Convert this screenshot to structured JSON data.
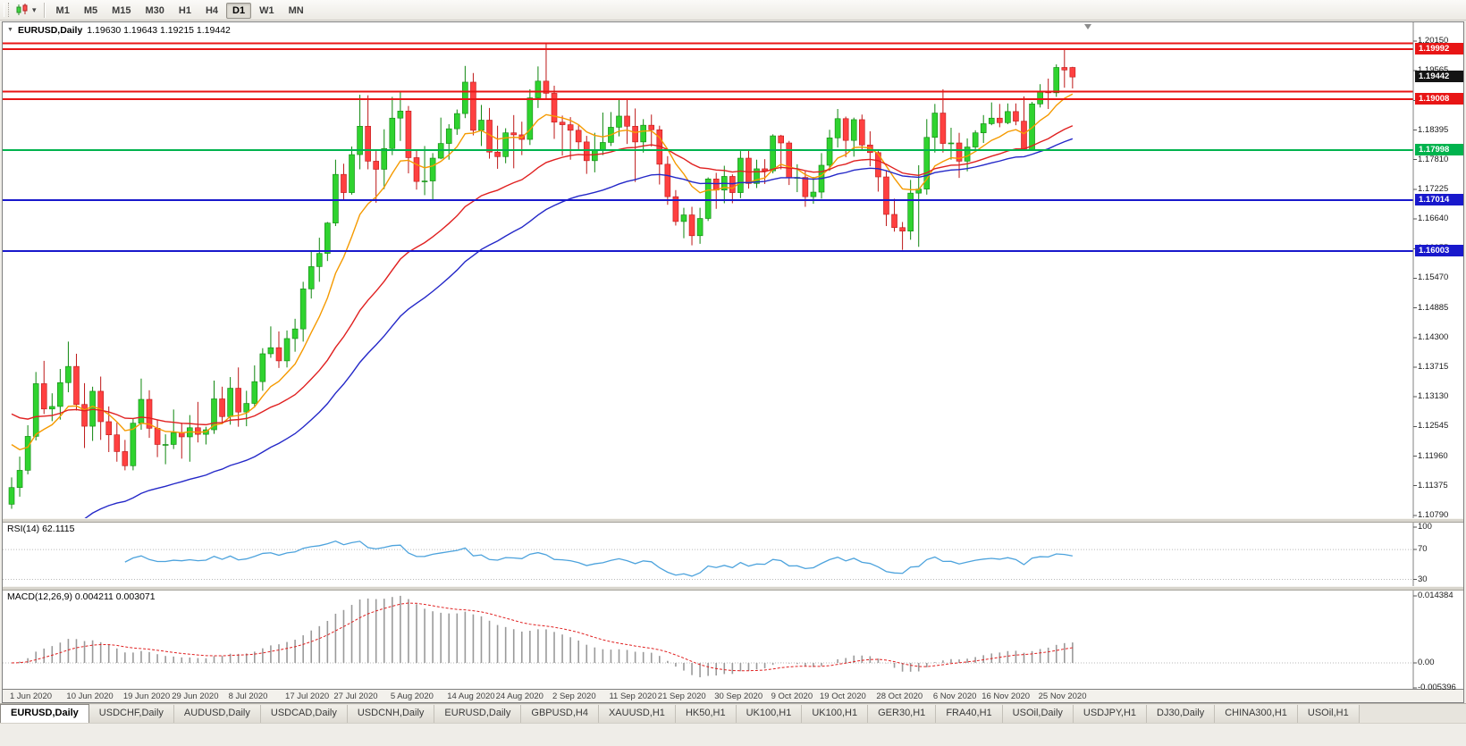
{
  "toolbar": {
    "caret": "▾",
    "timeframes": [
      {
        "label": "M1",
        "active": false
      },
      {
        "label": "M5",
        "active": false
      },
      {
        "label": "M15",
        "active": false
      },
      {
        "label": "M30",
        "active": false
      },
      {
        "label": "H1",
        "active": false
      },
      {
        "label": "H4",
        "active": false
      },
      {
        "label": "D1",
        "active": true
      },
      {
        "label": "W1",
        "active": false
      },
      {
        "label": "MN",
        "active": false
      }
    ]
  },
  "chart": {
    "header": {
      "caret": "▼",
      "title": "EURUSD,Daily",
      "ohlc": "1.19630 1.19643 1.19215 1.19442"
    }
  },
  "chart_data": {
    "type": "candlestick",
    "symbol": "EURUSD",
    "timeframe": "Daily",
    "ohlc_display": {
      "open": "1.19630",
      "high": "1.19643",
      "low": "1.19215",
      "close": "1.19442"
    },
    "colors": {
      "bull": "#2fd32f",
      "bull_edge": "#0e860e",
      "bear": "#ff4040",
      "bear_edge": "#bd1717",
      "background": "#ffffff",
      "axis_line": "#808080"
    },
    "price_axis": {
      "min": 1.1079,
      "max": 1.2015,
      "step": 0.00585,
      "labels": [
        "1.20150",
        "1.19565",
        "1.18980",
        "1.18395",
        "1.17810",
        "1.17225",
        "1.16640",
        "1.16055",
        "1.15470",
        "1.14885",
        "1.14300",
        "1.13715",
        "1.13130",
        "1.12545",
        "1.11960",
        "1.11375",
        "1.10790"
      ]
    },
    "hlines": [
      {
        "price": 1.2011,
        "color": "#e81515"
      },
      {
        "price": 1.19992,
        "color": "#e81515"
      },
      {
        "price": 1.1915,
        "color": "#e81515"
      },
      {
        "price": 1.19008,
        "color": "#e81515"
      },
      {
        "price": 1.17998,
        "color": "#00b34d"
      },
      {
        "price": 1.17014,
        "color": "#1818cc"
      },
      {
        "price": 1.16003,
        "color": "#1818cc"
      }
    ],
    "badges": [
      {
        "text": "1.19992",
        "price": 1.19992,
        "color": "#e81515",
        "current": false
      },
      {
        "text": "1.19442",
        "price": 1.19442,
        "color": "#141414",
        "current": true
      },
      {
        "text": "1.19008",
        "price": 1.19008,
        "color": "#e81515",
        "current": false
      },
      {
        "text": "1.17998",
        "price": 1.17998,
        "color": "#00b34d",
        "current": false
      },
      {
        "text": "1.17014",
        "price": 1.17014,
        "color": "#1818cc",
        "current": false
      },
      {
        "text": "1.16003",
        "price": 1.16003,
        "color": "#1818cc",
        "current": false
      }
    ],
    "moving_averages": [
      {
        "name": "fast-ma",
        "period": 9,
        "seed": 1.124,
        "color": "#f59a00"
      },
      {
        "name": "medium-ma",
        "period": 28,
        "seed": 1.129,
        "color": "#e02020"
      },
      {
        "name": "slow-ma",
        "period": 43,
        "seed": 1.095,
        "color": "#2428c8"
      }
    ],
    "rsi": {
      "label": "RSI(14) 62.1115",
      "period": 14,
      "value": "62.1115",
      "levels": [
        100,
        70,
        30
      ],
      "line_color": "#4da3dd"
    },
    "macd": {
      "label": "MACD(12,26,9) 0.004211 0.003071",
      "fast": 12,
      "slow": 26,
      "signal": 9,
      "values": [
        "0.004211",
        "0.003071"
      ],
      "axis": [
        "0.014384",
        "0.00",
        "-0.005396"
      ],
      "hist_color": "#9a9a9a",
      "signal_color": "#e02020"
    },
    "date_labels": [
      {
        "index": 0,
        "label": "1 Jun 2020"
      },
      {
        "index": 7,
        "label": "10 Jun 2020"
      },
      {
        "index": 14,
        "label": "19 Jun 2020"
      },
      {
        "index": 20,
        "label": "29 Jun 2020"
      },
      {
        "index": 27,
        "label": "8 Jul 2020"
      },
      {
        "index": 34,
        "label": "17 Jul 2020"
      },
      {
        "index": 40,
        "label": "27 Jul 2020"
      },
      {
        "index": 47,
        "label": "5 Aug 2020"
      },
      {
        "index": 54,
        "label": "14 Aug 2020"
      },
      {
        "index": 60,
        "label": "24 Aug 2020"
      },
      {
        "index": 67,
        "label": "2 Sep 2020"
      },
      {
        "index": 74,
        "label": "11 Sep 2020"
      },
      {
        "index": 80,
        "label": "21 Sep 2020"
      },
      {
        "index": 87,
        "label": "30 Sep 2020"
      },
      {
        "index": 94,
        "label": "9 Oct 2020"
      },
      {
        "index": 100,
        "label": "19 Oct 2020"
      },
      {
        "index": 107,
        "label": "28 Oct 2020"
      },
      {
        "index": 114,
        "label": "6 Nov 2020"
      },
      {
        "index": 120,
        "label": "16 Nov 2020"
      },
      {
        "index": 127,
        "label": "25 Nov 2020"
      }
    ],
    "candles": [
      [
        1.1101,
        1.1154,
        1.1092,
        1.1134
      ],
      [
        1.1134,
        1.1195,
        1.1116,
        1.1168
      ],
      [
        1.1168,
        1.1257,
        1.116,
        1.1235
      ],
      [
        1.1235,
        1.1362,
        1.1227,
        1.1339
      ],
      [
        1.1339,
        1.1384,
        1.1279,
        1.1289
      ],
      [
        1.1289,
        1.132,
        1.1265,
        1.1294
      ],
      [
        1.1294,
        1.1368,
        1.1268,
        1.1341
      ],
      [
        1.1341,
        1.1422,
        1.1322,
        1.1373
      ],
      [
        1.1373,
        1.1398,
        1.1286,
        1.1298
      ],
      [
        1.1298,
        1.134,
        1.1212,
        1.1255
      ],
      [
        1.1255,
        1.1333,
        1.1226,
        1.1324
      ],
      [
        1.1324,
        1.1353,
        1.1228,
        1.1264
      ],
      [
        1.1264,
        1.1294,
        1.1204,
        1.1238
      ],
      [
        1.1238,
        1.1262,
        1.1185,
        1.1205
      ],
      [
        1.1205,
        1.1228,
        1.1168,
        1.1177
      ],
      [
        1.1177,
        1.1271,
        1.1168,
        1.1261
      ],
      [
        1.1261,
        1.1349,
        1.1248,
        1.1308
      ],
      [
        1.1308,
        1.1326,
        1.1232,
        1.1251
      ],
      [
        1.1251,
        1.1268,
        1.1194,
        1.1219
      ],
      [
        1.1219,
        1.1239,
        1.118,
        1.1219
      ],
      [
        1.1219,
        1.1288,
        1.121,
        1.1242
      ],
      [
        1.1242,
        1.1262,
        1.1191,
        1.1234
      ],
      [
        1.1234,
        1.1277,
        1.1185,
        1.1252
      ],
      [
        1.1252,
        1.1303,
        1.1223,
        1.1239
      ],
      [
        1.1239,
        1.1254,
        1.1219,
        1.1248
      ],
      [
        1.1248,
        1.1345,
        1.124,
        1.1309
      ],
      [
        1.1309,
        1.1333,
        1.1259,
        1.1274
      ],
      [
        1.1274,
        1.1352,
        1.1258,
        1.133
      ],
      [
        1.133,
        1.1371,
        1.1254,
        1.1283
      ],
      [
        1.1283,
        1.1325,
        1.1255,
        1.13
      ],
      [
        1.13,
        1.1375,
        1.1292,
        1.1343
      ],
      [
        1.1343,
        1.1409,
        1.1325,
        1.1398
      ],
      [
        1.1398,
        1.1452,
        1.139,
        1.141
      ],
      [
        1.141,
        1.1442,
        1.137,
        1.1384
      ],
      [
        1.1384,
        1.1444,
        1.1371,
        1.1428
      ],
      [
        1.1428,
        1.1467,
        1.1402,
        1.1447
      ],
      [
        1.1447,
        1.154,
        1.1422,
        1.1526
      ],
      [
        1.1526,
        1.1601,
        1.1507,
        1.157
      ],
      [
        1.157,
        1.1627,
        1.154,
        1.1596
      ],
      [
        1.1596,
        1.1658,
        1.1581,
        1.1656
      ],
      [
        1.1656,
        1.1781,
        1.165,
        1.1752
      ],
      [
        1.1752,
        1.1773,
        1.17,
        1.1716
      ],
      [
        1.1716,
        1.1807,
        1.1712,
        1.1791
      ],
      [
        1.1791,
        1.1909,
        1.1762,
        1.1847
      ],
      [
        1.1847,
        1.1908,
        1.1762,
        1.1778
      ],
      [
        1.1778,
        1.1798,
        1.1696,
        1.1762
      ],
      [
        1.1762,
        1.1841,
        1.1723,
        1.1803
      ],
      [
        1.1803,
        1.1905,
        1.179,
        1.1863
      ],
      [
        1.1863,
        1.1916,
        1.1818,
        1.1877
      ],
      [
        1.1877,
        1.1887,
        1.1754,
        1.1785
      ],
      [
        1.1785,
        1.18,
        1.1722,
        1.1738
      ],
      [
        1.1738,
        1.1808,
        1.1711,
        1.1739
      ],
      [
        1.1739,
        1.1794,
        1.1701,
        1.1784
      ],
      [
        1.1784,
        1.1864,
        1.1782,
        1.1813
      ],
      [
        1.1813,
        1.1851,
        1.1781,
        1.1842
      ],
      [
        1.1842,
        1.188,
        1.183,
        1.1872
      ],
      [
        1.1872,
        1.1966,
        1.1863,
        1.1934
      ],
      [
        1.1934,
        1.1952,
        1.1829,
        1.1839
      ],
      [
        1.1839,
        1.1889,
        1.1808,
        1.1859
      ],
      [
        1.1859,
        1.1883,
        1.1783,
        1.1796
      ],
      [
        1.1796,
        1.1848,
        1.1763,
        1.1787
      ],
      [
        1.1787,
        1.1843,
        1.1774,
        1.1834
      ],
      [
        1.1834,
        1.1869,
        1.1764,
        1.183
      ],
      [
        1.183,
        1.1856,
        1.179,
        1.1821
      ],
      [
        1.1821,
        1.192,
        1.181,
        1.1903
      ],
      [
        1.1903,
        1.1965,
        1.1883,
        1.1936
      ],
      [
        1.1936,
        1.2011,
        1.1902,
        1.1912
      ],
      [
        1.1912,
        1.1927,
        1.1822,
        1.1855
      ],
      [
        1.1855,
        1.1868,
        1.1789,
        1.185
      ],
      [
        1.185,
        1.1865,
        1.1781,
        1.1839
      ],
      [
        1.1839,
        1.1849,
        1.1799,
        1.1816
      ],
      [
        1.1816,
        1.1828,
        1.1753,
        1.1779
      ],
      [
        1.1779,
        1.1834,
        1.1756,
        1.1801
      ],
      [
        1.1801,
        1.1874,
        1.179,
        1.1815
      ],
      [
        1.1815,
        1.1875,
        1.1808,
        1.1845
      ],
      [
        1.1845,
        1.1901,
        1.1827,
        1.1867
      ],
      [
        1.1867,
        1.1899,
        1.1812,
        1.1847
      ],
      [
        1.1847,
        1.1882,
        1.1737,
        1.1816
      ],
      [
        1.1816,
        1.1861,
        1.1795,
        1.1849
      ],
      [
        1.1849,
        1.187,
        1.1807,
        1.184
      ],
      [
        1.184,
        1.1848,
        1.1732,
        1.1772
      ],
      [
        1.1772,
        1.1788,
        1.1692,
        1.1708
      ],
      [
        1.1708,
        1.1721,
        1.1651,
        1.1659
      ],
      [
        1.1659,
        1.1686,
        1.1626,
        1.1672
      ],
      [
        1.1672,
        1.1688,
        1.1612,
        1.1631
      ],
      [
        1.1631,
        1.1686,
        1.1615,
        1.1665
      ],
      [
        1.1665,
        1.1746,
        1.166,
        1.1743
      ],
      [
        1.1743,
        1.1755,
        1.1684,
        1.1721
      ],
      [
        1.1721,
        1.1769,
        1.1695,
        1.1748
      ],
      [
        1.1748,
        1.1752,
        1.1695,
        1.1716
      ],
      [
        1.1716,
        1.1798,
        1.1705,
        1.1784
      ],
      [
        1.1784,
        1.1799,
        1.1724,
        1.1734
      ],
      [
        1.1734,
        1.1781,
        1.1725,
        1.1763
      ],
      [
        1.1763,
        1.1782,
        1.1733,
        1.1759
      ],
      [
        1.1759,
        1.1831,
        1.1754,
        1.1828
      ],
      [
        1.1828,
        1.183,
        1.1762,
        1.1814
      ],
      [
        1.1814,
        1.1818,
        1.1731,
        1.1745
      ],
      [
        1.1745,
        1.1772,
        1.1717,
        1.1746
      ],
      [
        1.1746,
        1.1758,
        1.1688,
        1.1708
      ],
      [
        1.1708,
        1.1747,
        1.1694,
        1.1717
      ],
      [
        1.1717,
        1.1794,
        1.1704,
        1.177
      ],
      [
        1.177,
        1.184,
        1.1759,
        1.1824
      ],
      [
        1.1824,
        1.1881,
        1.1805,
        1.1862
      ],
      [
        1.1862,
        1.1866,
        1.1786,
        1.1819
      ],
      [
        1.1819,
        1.1864,
        1.1787,
        1.186
      ],
      [
        1.186,
        1.187,
        1.18,
        1.181
      ],
      [
        1.181,
        1.1837,
        1.1768,
        1.1795
      ],
      [
        1.1795,
        1.18,
        1.1718,
        1.1747
      ],
      [
        1.1747,
        1.1759,
        1.165,
        1.1673
      ],
      [
        1.1673,
        1.1704,
        1.1639,
        1.1647
      ],
      [
        1.1647,
        1.1658,
        1.1603,
        1.164
      ],
      [
        1.164,
        1.1741,
        1.1623,
        1.1715
      ],
      [
        1.1715,
        1.177,
        1.1609,
        1.1723
      ],
      [
        1.1723,
        1.1861,
        1.1712,
        1.1825
      ],
      [
        1.1825,
        1.1891,
        1.1795,
        1.1873
      ],
      [
        1.1873,
        1.192,
        1.1795,
        1.1813
      ],
      [
        1.1813,
        1.1844,
        1.1781,
        1.1814
      ],
      [
        1.1814,
        1.1834,
        1.1745,
        1.1778
      ],
      [
        1.1778,
        1.1823,
        1.1758,
        1.1806
      ],
      [
        1.1806,
        1.1839,
        1.1799,
        1.1834
      ],
      [
        1.1834,
        1.1869,
        1.1814,
        1.1852
      ],
      [
        1.1852,
        1.1894,
        1.1849,
        1.1863
      ],
      [
        1.1863,
        1.1891,
        1.1845,
        1.1854
      ],
      [
        1.1854,
        1.1892,
        1.1851,
        1.1876
      ],
      [
        1.1876,
        1.1892,
        1.1849,
        1.1857
      ],
      [
        1.1857,
        1.1906,
        1.1799,
        1.1801
      ],
      [
        1.1801,
        1.1895,
        1.18,
        1.1891
      ],
      [
        1.1891,
        1.193,
        1.1884,
        1.1916
      ],
      [
        1.1916,
        1.1941,
        1.1881,
        1.1913
      ],
      [
        1.1913,
        1.1969,
        1.1905,
        1.1963
      ],
      [
        1.1963,
        1.19992,
        1.1923,
        1.1958
      ],
      [
        1.1963,
        1.19643,
        1.19215,
        1.19442
      ]
    ]
  },
  "tabs": [
    {
      "label": "EURUSD,Daily",
      "active": true
    },
    {
      "label": "USDCHF,Daily",
      "active": false
    },
    {
      "label": "AUDUSD,Daily",
      "active": false
    },
    {
      "label": "USDCAD,Daily",
      "active": false
    },
    {
      "label": "USDCNH,Daily",
      "active": false
    },
    {
      "label": "EURUSD,Daily",
      "active": false
    },
    {
      "label": "GBPUSD,H4",
      "active": false
    },
    {
      "label": "XAUUSD,H1",
      "active": false
    },
    {
      "label": "HK50,H1",
      "active": false
    },
    {
      "label": "UK100,H1",
      "active": false
    },
    {
      "label": "UK100,H1",
      "active": false
    },
    {
      "label": "GER30,H1",
      "active": false
    },
    {
      "label": "FRA40,H1",
      "active": false
    },
    {
      "label": "USOil,Daily",
      "active": false
    },
    {
      "label": "USDJPY,H1",
      "active": false
    },
    {
      "label": "DJ30,Daily",
      "active": false
    },
    {
      "label": "CHINA300,H1",
      "active": false
    },
    {
      "label": "USOil,H1",
      "active": false
    }
  ]
}
